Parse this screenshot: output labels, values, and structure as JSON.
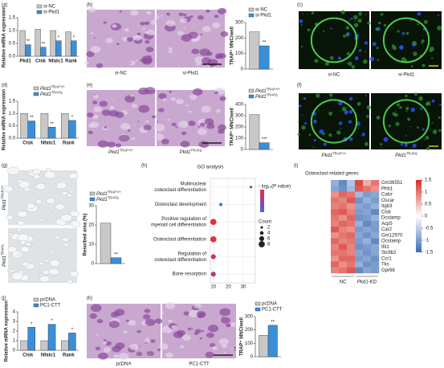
{
  "chart_data": [
    {
      "panel": "(a)",
      "type": "bar",
      "ylabel": "Relative mRNA expression",
      "categories": [
        "Pkd1",
        "Ctsk",
        "Nfatc1",
        "Rank"
      ],
      "series": [
        {
          "name": "si-NC",
          "color": "#c8c8c8",
          "values": [
            1.0,
            1.05,
            1.0,
            0.95
          ]
        },
        {
          "name": "si-Pkd1",
          "color": "#3a8fd8",
          "values": [
            0.45,
            0.35,
            0.6,
            0.6
          ],
          "significance": [
            "**",
            "**",
            "*",
            "*"
          ]
        }
      ],
      "ylim": [
        0,
        1.5
      ],
      "yticks": [
        {
          "value": 0,
          "label": "0.0"
        },
        {
          "value": 0.5,
          "label": "0.5"
        },
        {
          "value": 1,
          "label": "1.0"
        },
        {
          "value": 1.5,
          "label": "1.5"
        }
      ],
      "legend": "top"
    },
    {
      "type": "bar",
      "ylabel": "TRAP⁺ MNC/well",
      "categories": [
        null
      ],
      "series": [
        {
          "name": "si-NC",
          "color": "#c8c8c8",
          "values": [
            240
          ]
        },
        {
          "name": "si-Pkd1",
          "color": "#3a8fd8",
          "values": [
            150
          ],
          "significance": [
            "**"
          ]
        }
      ],
      "ylim": [
        0,
        300
      ],
      "yticks": [
        0,
        100,
        200,
        300
      ],
      "legend": "top"
    },
    {
      "panel": "(d)",
      "type": "bar",
      "ylabel": "Relative mRNA expression",
      "categories": [
        "Ctsk",
        "Nfatc1",
        "Rank"
      ],
      "series": [
        {
          "name": {
            "base": "Pkd1",
            "sup": "TRAP+/+"
          },
          "color": "#c8c8c8",
          "values": [
            1.0,
            1.0,
            1.0
          ]
        },
        {
          "name": {
            "base": "Pkd1",
            "sup": "TRAPΔ"
          },
          "color": "#3a8fd8",
          "values": [
            0.7,
            0.45,
            0.72
          ],
          "significance": [
            "**",
            "**",
            "*"
          ]
        }
      ],
      "ylim": [
        0,
        1.5
      ],
      "yticks": [
        {
          "value": 0,
          "label": "0.0"
        },
        {
          "value": 0.5,
          "label": "0.5"
        },
        {
          "value": 1,
          "label": "1.0"
        },
        {
          "value": 1.5,
          "label": "1.5"
        }
      ],
      "legend": "top"
    },
    {
      "type": "bar",
      "ylabel": "TRAP⁺ MNC/well",
      "categories": [
        null
      ],
      "series": [
        {
          "name": {
            "base": "Pkd1",
            "sup": "TRAP+/+"
          },
          "color": "#c8c8c8",
          "values": [
            310
          ]
        },
        {
          "name": {
            "base": "Pkd1",
            "sup": "TRAPΔ"
          },
          "color": "#3a8fd8",
          "values": [
            60
          ],
          "significance": [
            "***"
          ]
        }
      ],
      "ylim": [
        0,
        400
      ],
      "yticks": [
        0,
        100,
        200,
        300,
        400
      ],
      "legend": "top"
    },
    {
      "type": "bar",
      "ylabel": "Resorbed area (%)",
      "categories": [
        null
      ],
      "series": [
        {
          "name": {
            "base": "Pkd1",
            "sup": "TRAP+/+"
          },
          "color": "#c8c8c8",
          "values": [
            21
          ]
        },
        {
          "name": {
            "base": "Pkd1",
            "sup": "TRAPΔ"
          },
          "color": "#3a8fd8",
          "values": [
            3
          ],
          "significance": [
            "**"
          ]
        }
      ],
      "ylim": [
        0,
        30
      ],
      "yticks": [
        0,
        10,
        20,
        30
      ],
      "legend": "top"
    },
    {
      "panel": "(h)",
      "type": "scatter",
      "title": "GO analysis",
      "categories": [
        [
          "Multinuclear",
          "osteoclast differentiation"
        ],
        [
          "Osteoclast development"
        ],
        [
          "Positive regulation of",
          "myeloid cell differentiation"
        ],
        [
          "Osteoclast differentiation"
        ],
        [
          "Regulation of",
          "osteoclast differentiation"
        ],
        [
          "Bone resorption"
        ]
      ],
      "values": [
        35,
        15,
        10,
        10,
        10,
        10
      ],
      "sizes": [
        2,
        3,
        8,
        8,
        6,
        6
      ],
      "colors": [
        "#7b3fa0",
        "#3a6fd8",
        "#e8303a",
        "#e8303a",
        "#c83468",
        "#a8408a"
      ],
      "xlim": [
        8,
        38
      ],
      "xticks": [
        10,
        20,
        30
      ],
      "grid": true,
      "color_legend": {
        "title": "- log₁₀(P value)"
      },
      "size_legend": {
        "title": "Count",
        "values": [
          2,
          4,
          6,
          8
        ]
      }
    },
    {
      "panel": "(i)",
      "type": "heatmap",
      "title": "Osteoclast-related genes",
      "rows": [
        "Gm36551",
        "Plrb1",
        "Calcr",
        "Oscar",
        "Itgb3",
        "Ctsk",
        "Dcstamp",
        "Acp5",
        "Car2",
        "Gm12970",
        "Ocstamp",
        "Ifit1",
        "Slc9b2",
        "Ccr1",
        "Tks",
        "Gpr68"
      ],
      "column_groups": [
        "NC",
        "Pkd1-KD"
      ],
      "values": [
        [
          -0.8,
          -1.2,
          -0.6,
          1.3,
          0.6,
          1.0
        ],
        [
          -0.9,
          -1.1,
          -0.7,
          1.2,
          1.0,
          0.8
        ],
        [
          0.8,
          1.1,
          1.0,
          -0.7,
          -1.0,
          -0.9
        ],
        [
          1.0,
          0.9,
          1.2,
          -1.1,
          -0.8,
          -1.0
        ],
        [
          0.9,
          1.0,
          0.8,
          -0.9,
          -1.0,
          -0.8
        ],
        [
          1.1,
          1.2,
          0.9,
          -1.0,
          -0.9,
          -1.2
        ],
        [
          1.0,
          0.8,
          1.1,
          -1.1,
          -1.0,
          -0.8
        ],
        [
          0.9,
          1.1,
          1.0,
          -0.8,
          -1.2,
          -1.0
        ],
        [
          1.2,
          0.9,
          0.8,
          -1.0,
          -0.9,
          -1.0
        ],
        [
          0.8,
          1.0,
          1.1,
          -0.9,
          -1.1,
          -0.9
        ],
        [
          1.1,
          0.9,
          1.0,
          -1.0,
          -0.8,
          -1.2
        ],
        [
          0.9,
          1.2,
          0.9,
          -1.1,
          -1.0,
          -0.9
        ],
        [
          1.0,
          1.0,
          0.9,
          -0.9,
          -1.1,
          -0.9
        ],
        [
          0.8,
          1.1,
          1.1,
          -1.0,
          -0.9,
          -1.1
        ],
        [
          1.1,
          0.8,
          1.0,
          -0.8,
          -1.1,
          -1.0
        ],
        [
          0.9,
          1.0,
          1.2,
          -1.2,
          -0.9,
          -1.0
        ]
      ],
      "zlim": [
        -1.5,
        1.5
      ],
      "zticks": [
        1.5,
        1,
        0.5,
        0,
        -0.5,
        -1,
        -1.5
      ]
    },
    {
      "panel": "(j)",
      "type": "bar",
      "ylabel": "Relative mRNA expression",
      "categories": [
        "Ctsk",
        "Nfatc1",
        "Rank"
      ],
      "series": [
        {
          "name": "pcDNA",
          "color": "#c8c8c8",
          "values": [
            1.0,
            1.0,
            1.0
          ]
        },
        {
          "name": "PC1-CTT",
          "color": "#3a8fd8",
          "values": [
            2.4,
            2.7,
            1.8
          ],
          "significance": [
            "*",
            "*",
            "*"
          ]
        }
      ],
      "ylim": [
        0,
        4
      ],
      "yticks": [
        0,
        1,
        2,
        3,
        4
      ],
      "legend": "top"
    },
    {
      "type": "bar",
      "ylabel": "TRAP⁺ MNC/well",
      "categories": [
        null
      ],
      "series": [
        {
          "name": "pcDNA",
          "color": "#c8c8c8",
          "values": [
            160
          ]
        },
        {
          "name": "PC1-CTT",
          "color": "#3a8fd8",
          "values": [
            235
          ],
          "significance": [
            "**"
          ]
        }
      ],
      "ylim": [
        0,
        300
      ],
      "yticks": [
        0,
        100,
        200,
        300
      ],
      "legend": "top"
    }
  ],
  "images": [
    {
      "panel": "(b)",
      "captions": [
        "si-NC",
        "si-Pkd1"
      ]
    },
    {
      "panel": "(c)",
      "captions": [
        "si-NC",
        "si-Pkd1"
      ]
    },
    {
      "panel": "(e)",
      "captions": [
        {
          "base": "Pkd1",
          "sup": "TRAP+/+"
        },
        {
          "base": "Pkd1",
          "sup": "TRAPΔ"
        }
      ]
    },
    {
      "panel": "(f)",
      "captions": [
        {
          "base": "Pkd1",
          "sup": "TRAP+/+"
        },
        {
          "base": "Pkd1",
          "sup": "TRAPΔ"
        }
      ]
    },
    {
      "panel": "(g)",
      "captions": [
        {
          "base": "Pkd1",
          "sup": "TRAP+/+"
        },
        {
          "base": "Pkd1",
          "sup": "TRAPΔ"
        }
      ]
    },
    {
      "panel": "(k)",
      "captions": [
        "pcDNA",
        "PC1-CTT"
      ]
    }
  ]
}
